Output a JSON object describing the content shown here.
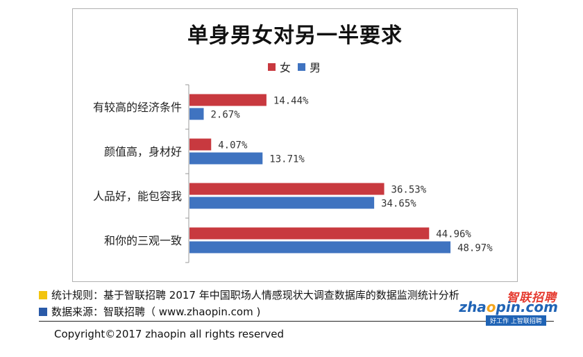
{
  "chart_data": {
    "type": "bar",
    "orientation": "horizontal",
    "title": "单身男女对另一半要求",
    "categories": [
      "有较高的经济条件",
      "颜值高，身材好",
      "人品好，能包容我",
      "和你的三观一致"
    ],
    "series": [
      {
        "name": "女",
        "color": "#c8393f",
        "values": [
          14.44,
          4.07,
          36.53,
          44.96
        ],
        "labels": [
          "14.44%",
          "4.07%",
          "36.53%",
          "44.96%"
        ]
      },
      {
        "name": "男",
        "color": "#3f73c0",
        "values": [
          2.67,
          13.71,
          34.65,
          48.97
        ],
        "labels": [
          "2.67%",
          "13.71%",
          "34.65%",
          "48.97%"
        ]
      }
    ],
    "xlim": [
      0,
      50
    ],
    "legend_position": "top",
    "grid": false
  },
  "footer": {
    "rule_label": "统计规则：基于智联招聘 2017 年中国职场人情感现状大调查数据库的数据监测统计分析",
    "rule_color": "#f2c40f",
    "source_label": "数据来源：智联招聘（ www.zhaopin.com )",
    "source_color": "#2a5aa8",
    "copyright": "Copyright©2017 zhaopin all rights reserved"
  },
  "logo": {
    "top_text": "智联招聘",
    "brand_pre": "zha",
    "brand_o": "o",
    "brand_post": "pin.com",
    "slogan": "好工作  上智联招聘"
  }
}
